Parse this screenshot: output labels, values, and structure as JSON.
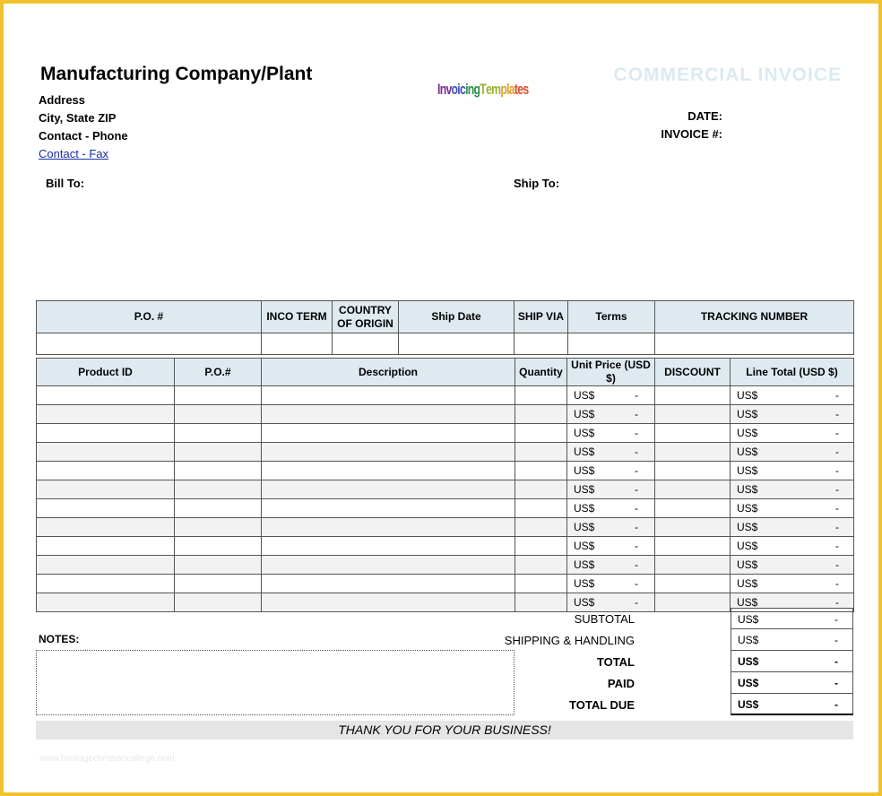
{
  "company": {
    "name": "Manufacturing Company/Plant",
    "address": "Address",
    "city": "City, State ZIP",
    "contact": "Contact - Phone",
    "fax_link": "Contact - Fax"
  },
  "logo": {
    "text": "InvoicingTemplates",
    "colors": [
      "#7b2c8f",
      "#3a4fb5",
      "#2d8f4b",
      "#9ab32c",
      "#e3a12a",
      "#d94a2b"
    ]
  },
  "invoice": {
    "title": "COMMERCIAL INVOICE",
    "date_label": "DATE:",
    "number_label": "INVOICE #:"
  },
  "parties": {
    "bill_to": "Bill To:",
    "ship_to": "Ship To:"
  },
  "shipping_table": {
    "headers": [
      "P.O. #",
      "INCO TERM",
      "COUNTRY OF ORIGIN",
      "Ship Date",
      "SHIP VIA",
      "Terms",
      "TRACKING NUMBER"
    ]
  },
  "items_table": {
    "headers": [
      "Product ID",
      "P.O.#",
      "Description",
      "Quantity",
      "Unit Price (USD $)",
      "DISCOUNT",
      "Line Total (USD $)"
    ],
    "currency": "US$",
    "empty_value": "-",
    "row_count": 12
  },
  "totals": [
    {
      "label": "SUBTOTAL",
      "currency": "US$",
      "value": "-",
      "bold": false
    },
    {
      "label": "SHIPPING & HANDLING",
      "currency": "US$",
      "value": "-",
      "bold": false
    },
    {
      "label": "TOTAL",
      "currency": "US$",
      "value": "-",
      "bold": true
    },
    {
      "label": "PAID",
      "currency": "US$",
      "value": "-",
      "bold": true
    },
    {
      "label": "TOTAL DUE",
      "currency": "US$",
      "value": "-",
      "bold": true
    }
  ],
  "notes_label": "NOTES:",
  "footer": {
    "thanks": "THANK YOU FOR YOUR BUSINESS!",
    "watermark": "www.heritagechristiancollege.com"
  },
  "colors": {
    "frame": "#f2c12e",
    "header_fill": "#dfeaf0",
    "title": "#dceaf0",
    "link": "#1a2fa3"
  }
}
